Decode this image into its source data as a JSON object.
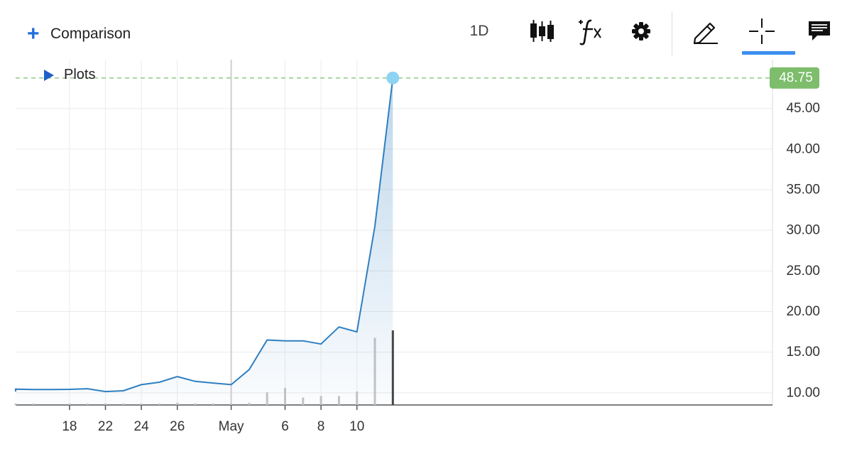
{
  "toolbar": {
    "comparison_icon": "+",
    "comparison_label": "Comparison",
    "period_label": "1D",
    "icons": [
      "candlestick-chart-icon",
      "indicators-fx-icon",
      "settings-gear-icon",
      "draw-pencil-icon",
      "crosshair-icon",
      "comments-icon"
    ],
    "active_tool": "crosshair-icon",
    "accent_color": "#3b8ff0"
  },
  "plots_toggle": {
    "label": "Plots"
  },
  "chart_data": {
    "type": "area",
    "line_color": "#2f7fc1",
    "fill_color": "#2f7fc1",
    "x_ticks": [
      "18",
      "22",
      "24",
      "26",
      "May",
      "6",
      "8",
      "10"
    ],
    "y_ticks": [
      "10.00",
      "15.00",
      "20.00",
      "25.00",
      "30.00",
      "35.00",
      "40.00",
      "45.00"
    ],
    "ylim": [
      8.5,
      51
    ],
    "grid": true,
    "last_price": {
      "label": "48.75",
      "value": 48.75,
      "color": "#7dbd6c",
      "marker_color": "#8fd3f4"
    },
    "points": [
      {
        "date": "Apr 14",
        "value": 10.15
      },
      {
        "date": "Apr 15",
        "value": 10.45
      },
      {
        "date": "Apr 16",
        "value": 10.4
      },
      {
        "date": "Apr 17",
        "value": 10.4
      },
      {
        "date": "Apr 18",
        "value": 10.42
      },
      {
        "date": "Apr 19",
        "value": 10.5
      },
      {
        "date": "Apr 22",
        "value": 10.15
      },
      {
        "date": "Apr 23",
        "value": 10.25
      },
      {
        "date": "Apr 24",
        "value": 11.0
      },
      {
        "date": "Apr 25",
        "value": 11.3
      },
      {
        "date": "Apr 26",
        "value": 12.0
      },
      {
        "date": "Apr 29",
        "value": 11.4
      },
      {
        "date": "Apr 30",
        "value": 11.2
      },
      {
        "date": "May 1",
        "value": 11.0
      },
      {
        "date": "May 2",
        "value": 12.85
      },
      {
        "date": "May 3",
        "value": 16.5
      },
      {
        "date": "May 6",
        "value": 16.4
      },
      {
        "date": "May 7",
        "value": 16.4
      },
      {
        "date": "May 8",
        "value": 16.0
      },
      {
        "date": "May 9",
        "value": 18.1
      },
      {
        "date": "May 10",
        "value": 17.5
      },
      {
        "date": "May 13",
        "value": 30.5
      },
      {
        "date": "May 14",
        "value": 48.75
      }
    ],
    "volume": [
      {
        "date": "Apr 15",
        "level": 0.02
      },
      {
        "date": "Apr 16",
        "level": 0.02
      },
      {
        "date": "Apr 18",
        "level": 0.02
      },
      {
        "date": "Apr 19",
        "level": 0.02
      },
      {
        "date": "Apr 22",
        "level": 0.02
      },
      {
        "date": "Apr 23",
        "level": 0.02
      },
      {
        "date": "Apr 24",
        "level": 0.02
      },
      {
        "date": "Apr 25",
        "level": 0.02
      },
      {
        "date": "Apr 26",
        "level": 0.03
      },
      {
        "date": "Apr 29",
        "level": 0.02
      },
      {
        "date": "Apr 30",
        "level": 0.02
      },
      {
        "date": "May 1",
        "level": 0.02
      },
      {
        "date": "May 2",
        "level": 0.03
      },
      {
        "date": "May 3",
        "level": 0.17
      },
      {
        "date": "May 6",
        "level": 0.23
      },
      {
        "date": "May 7",
        "level": 0.1
      },
      {
        "date": "May 8",
        "level": 0.12
      },
      {
        "date": "May 9",
        "level": 0.12
      },
      {
        "date": "May 10",
        "level": 0.18
      },
      {
        "date": "May 13",
        "level": 0.9
      },
      {
        "date": "May 14",
        "level": 1.0
      }
    ]
  }
}
